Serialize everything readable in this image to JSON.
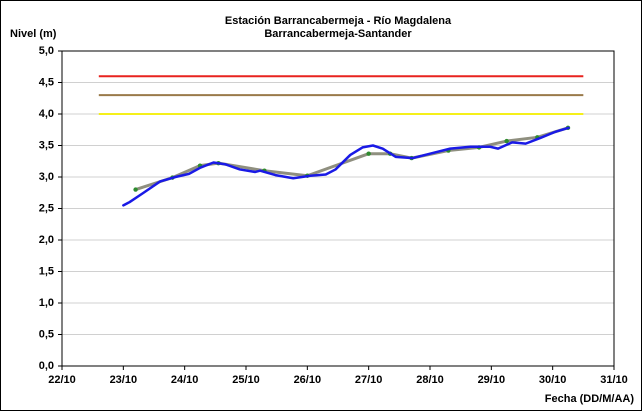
{
  "chart_data": {
    "type": "line",
    "title": "Estación Barrancabermeja - Río Magdalena",
    "subtitle": "Barrancabermeja-Santander",
    "y_label": "Nivel (m)",
    "x_label": "Fecha (DD/M/AA)",
    "xlim": [
      22,
      31
    ],
    "xticks": [
      {
        "value": 22,
        "label": "22/10"
      },
      {
        "value": 23,
        "label": "23/10"
      },
      {
        "value": 24,
        "label": "24/10"
      },
      {
        "value": 25,
        "label": "25/10"
      },
      {
        "value": 26,
        "label": "26/10"
      },
      {
        "value": 27,
        "label": "27/10"
      },
      {
        "value": 28,
        "label": "28/10"
      },
      {
        "value": 29,
        "label": "29/10"
      },
      {
        "value": 30,
        "label": "30/10"
      },
      {
        "value": 31,
        "label": "31/10"
      }
    ],
    "ylim": [
      0,
      5
    ],
    "yticks": [
      {
        "value": 0,
        "label": "0,0"
      },
      {
        "value": 0.5,
        "label": "0,5"
      },
      {
        "value": 1,
        "label": "1,0"
      },
      {
        "value": 1.5,
        "label": "1,5"
      },
      {
        "value": 2,
        "label": "2,0"
      },
      {
        "value": 2.5,
        "label": "2,5"
      },
      {
        "value": 3,
        "label": "3,0"
      },
      {
        "value": 3.5,
        "label": "3,5"
      },
      {
        "value": 4,
        "label": "4,0"
      },
      {
        "value": 4.5,
        "label": "4,5"
      },
      {
        "value": 5,
        "label": "5,0"
      }
    ],
    "grid": true,
    "reference_lines": [
      {
        "y": 4.6,
        "x": [
          22.6,
          30.5
        ],
        "color": "#e8231f"
      },
      {
        "y": 4.3,
        "x": [
          22.6,
          30.5
        ],
        "color": "#9a7a4a"
      },
      {
        "y": 4.0,
        "x": [
          22.6,
          30.5
        ],
        "color": "#f5f01a"
      }
    ],
    "series": [
      {
        "color": "#8f8f7f",
        "marker_color": "#2e8b2e",
        "width": 3,
        "x": [
          23.2,
          23.8,
          24.25,
          24.55,
          25.3,
          26.0,
          27.0,
          27.35,
          27.7,
          28.3,
          28.8,
          29.25,
          29.75,
          30.25
        ],
        "values": [
          2.8,
          2.99,
          3.18,
          3.22,
          3.1,
          3.02,
          3.37,
          3.37,
          3.3,
          3.42,
          3.47,
          3.57,
          3.63,
          3.78
        ]
      },
      {
        "color": "#1a1ae6",
        "width": 2.5,
        "x": [
          23.0,
          23.1,
          23.33,
          23.6,
          23.85,
          24.07,
          24.26,
          24.47,
          24.67,
          24.9,
          25.15,
          25.23,
          25.48,
          25.77,
          26.05,
          26.3,
          26.46,
          26.7,
          26.9,
          27.07,
          27.23,
          27.44,
          27.72,
          28.0,
          28.33,
          28.66,
          28.98,
          29.11,
          29.34,
          29.56,
          29.8,
          30.05,
          30.26
        ],
        "values": [
          2.55,
          2.6,
          2.75,
          2.93,
          3.0,
          3.05,
          3.15,
          3.23,
          3.2,
          3.12,
          3.08,
          3.1,
          3.03,
          2.98,
          3.02,
          3.04,
          3.12,
          3.35,
          3.47,
          3.5,
          3.45,
          3.32,
          3.3,
          3.37,
          3.45,
          3.48,
          3.48,
          3.45,
          3.55,
          3.53,
          3.62,
          3.72,
          3.78
        ]
      }
    ]
  }
}
